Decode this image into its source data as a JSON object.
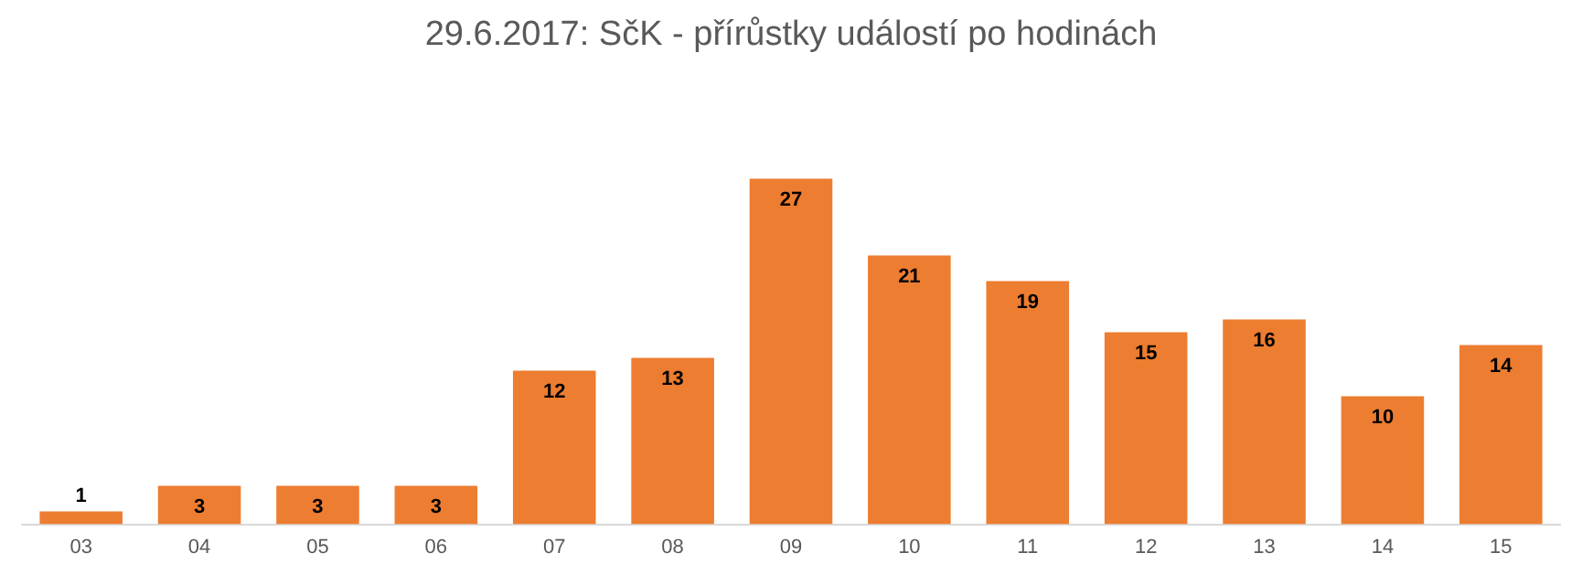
{
  "chart_data": {
    "type": "bar",
    "title": "29.6.2017: SčK - přírůstky událostí po hodinách",
    "categories": [
      "03",
      "04",
      "05",
      "06",
      "07",
      "08",
      "09",
      "10",
      "11",
      "12",
      "13",
      "14",
      "15"
    ],
    "values": [
      1,
      3,
      3,
      3,
      12,
      13,
      27,
      21,
      19,
      15,
      16,
      10,
      14
    ],
    "color": "#ed7d31",
    "data_labels": true,
    "grid": false,
    "legend": false
  }
}
